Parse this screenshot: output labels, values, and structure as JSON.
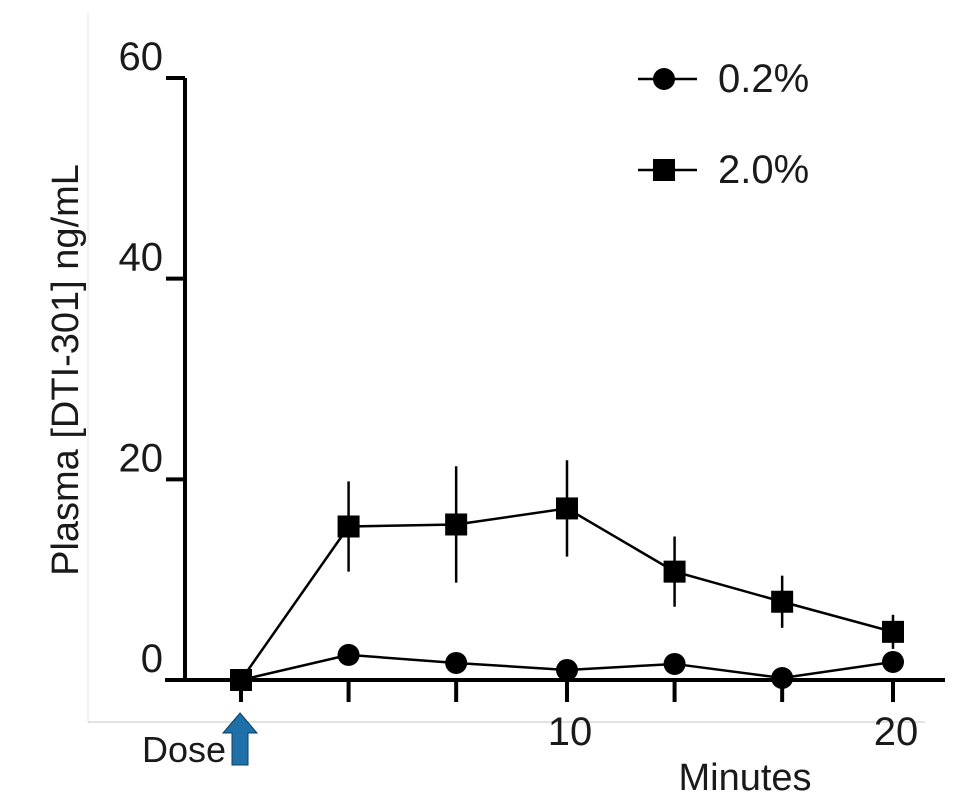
{
  "chart_data": {
    "type": "line",
    "title": "",
    "xlabel": "Minutes",
    "ylabel": "Plasma [DTI-301] ng/mL",
    "xlim": [
      -0.5,
      21.5
    ],
    "ylim": [
      0,
      60
    ],
    "grid": false,
    "legend_position": "top-right",
    "x_ticks": [
      0,
      3.3,
      6.6,
      10,
      13.3,
      16.6,
      20
    ],
    "x_tick_labels": [
      {
        "x": 10,
        "label": "10"
      },
      {
        "x": 20,
        "label": "20"
      }
    ],
    "y_ticks": [
      0,
      20,
      40,
      60
    ],
    "y_tick_labels": [
      "0",
      "20",
      "40",
      "60"
    ],
    "annotation": {
      "text": "Dose",
      "x": 0,
      "arrow_color": "#1f6fa8"
    },
    "series": [
      {
        "name": "0.2%",
        "marker": "circle",
        "x": [
          0,
          3.3,
          6.6,
          10,
          13.3,
          16.6,
          20
        ],
        "y": [
          0,
          2.5,
          1.7,
          1.0,
          1.6,
          0.2,
          1.8
        ]
      },
      {
        "name": "2.0%",
        "marker": "square",
        "x": [
          0,
          3.3,
          6.6,
          10,
          13.3,
          16.6,
          20
        ],
        "y": [
          0,
          15.3,
          15.5,
          17.1,
          10.8,
          7.8,
          4.8
        ],
        "error": [
          0,
          4.5,
          5.8,
          4.8,
          3.5,
          2.6,
          1.7
        ]
      }
    ]
  }
}
